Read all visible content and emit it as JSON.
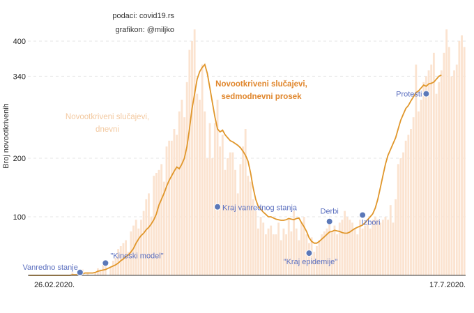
{
  "chart_data": {
    "type": "bar",
    "credit": [
      "podaci: covid19.rs",
      "grafikon: @miljko"
    ],
    "ylabel": "Broj novootkrivenih",
    "y_ticks": [
      100,
      200,
      340,
      400
    ],
    "ylim": [
      0,
      420
    ],
    "x_ticks": [
      "26.02.2020.",
      "17.7.2020."
    ],
    "series": [
      {
        "name": "Novootkriveni slučajevi, dnevni",
        "label_lines": [
          "Novootkriveni slučajevi,",
          "dnevni"
        ],
        "type": "bar",
        "color": "#fbe3d0",
        "values": [
          0,
          0,
          0,
          0,
          0,
          0,
          0,
          0,
          0,
          0,
          0,
          0,
          0,
          0,
          0,
          0,
          0,
          5,
          0,
          3,
          8,
          10,
          0,
          5,
          0,
          0,
          5,
          12,
          10,
          18,
          20,
          0,
          15,
          25,
          30,
          45,
          50,
          55,
          60,
          40,
          75,
          85,
          95,
          80,
          95,
          110,
          130,
          140,
          100,
          170,
          175,
          180,
          190,
          160,
          220,
          230,
          230,
          250,
          240,
          280,
          300,
          270,
          330,
          385,
          400,
          420,
          310,
          300,
          360,
          280,
          200,
          260,
          200,
          260,
          300,
          220,
          240,
          180,
          200,
          210,
          210,
          180,
          140,
          190,
          220,
          250,
          170,
          160,
          130,
          110,
          80,
          100,
          90,
          70,
          80,
          85,
          70,
          70,
          90,
          60,
          80,
          70,
          95,
          75,
          110,
          80,
          60,
          90,
          100,
          70,
          55,
          65,
          40,
          50,
          60,
          70,
          75,
          80,
          90,
          75,
          85,
          70,
          90,
          95,
          110,
          100,
          95,
          90,
          80,
          70,
          95,
          80,
          85,
          90,
          80,
          95,
          100,
          95,
          90,
          95,
          100,
          95,
          120,
          90,
          130,
          190,
          200,
          210,
          230,
          240,
          250,
          270,
          360,
          280,
          300,
          330,
          340,
          350,
          360,
          380,
          310,
          330,
          350,
          380,
          420,
          390,
          340,
          350,
          360,
          400,
          410,
          390
        ]
      },
      {
        "name": "Novootkriveni slučajevi, sedmodnevni prosek",
        "label_lines": [
          "Novootkriveni slučajevi,",
          "sedmodnevni prosek"
        ],
        "type": "line",
        "color": "#e0962a",
        "values": [
          0,
          0,
          0,
          0,
          0,
          0,
          0,
          0,
          0,
          0,
          0,
          0,
          0,
          0,
          0,
          0,
          0,
          1,
          1,
          1,
          2,
          3,
          4,
          4,
          4,
          4,
          5,
          7,
          8,
          9,
          10,
          12,
          14,
          16,
          18,
          21,
          25,
          28,
          32,
          35,
          40,
          46,
          55,
          62,
          68,
          72,
          78,
          82,
          88,
          95,
          105,
          120,
          130,
          140,
          152,
          162,
          170,
          178,
          185,
          182,
          190,
          200,
          220,
          250,
          285,
          310,
          335,
          348,
          355,
          360,
          345,
          320,
          295,
          270,
          250,
          245,
          248,
          240,
          235,
          230,
          228,
          225,
          222,
          218,
          212,
          205,
          195,
          175,
          150,
          130,
          118,
          113,
          108,
          104,
          100,
          100,
          98,
          96,
          95,
          94,
          94,
          95,
          97,
          96,
          95,
          97,
          98,
          90,
          83,
          75,
          64,
          58,
          55,
          55,
          58,
          62,
          66,
          70,
          74,
          75,
          77,
          76,
          75,
          73,
          72,
          72,
          74,
          77,
          80,
          82,
          84,
          86,
          90,
          95,
          100,
          105,
          115,
          130,
          150,
          170,
          190,
          205,
          215,
          225,
          235,
          250,
          265,
          275,
          285,
          290,
          298,
          305,
          312,
          315,
          320,
          325,
          323,
          327,
          328,
          330,
          335,
          340,
          342
        ]
      }
    ],
    "annotations": [
      {
        "label": "Vanredno stanje",
        "index": 20,
        "value": 5
      },
      {
        "label": "\"Kineski model\"",
        "index": 30,
        "value": 21
      },
      {
        "label": "Kraj vanrednog stanja",
        "index": 74,
        "value": 117
      },
      {
        "label": "\"Kraj epidemije\"",
        "index": 110,
        "value": 38
      },
      {
        "label": "Derbi",
        "index": 118,
        "value": 92
      },
      {
        "label": "Izbori",
        "index": 131,
        "value": 103
      },
      {
        "label": "Protesti",
        "index": 156,
        "value": 310
      }
    ]
  }
}
